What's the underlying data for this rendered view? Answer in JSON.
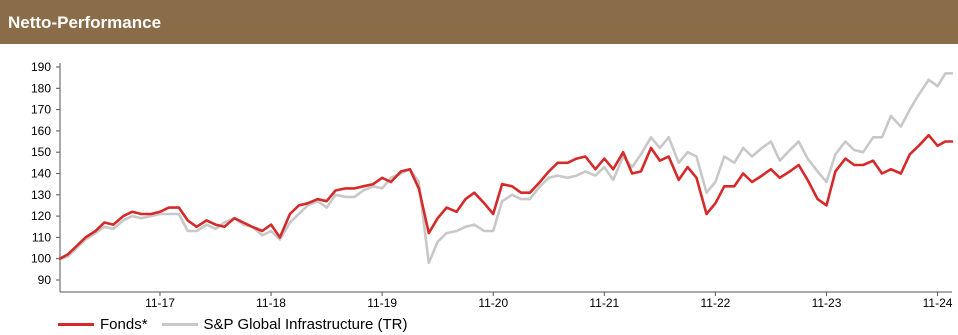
{
  "header": {
    "title": "Netto-Performance"
  },
  "colors": {
    "header_bg": "#8b6c49",
    "fonds": "#d42a2a",
    "benchmark": "#c8c8c8",
    "axis": "#555555"
  },
  "chart_data": {
    "type": "line",
    "title": "Netto-Performance",
    "xlabel": "",
    "ylabel": "",
    "ylim": [
      90,
      190
    ],
    "yticks": [
      90,
      100,
      110,
      120,
      130,
      140,
      150,
      160,
      170,
      180,
      190
    ],
    "xlim": [
      2016.1,
      2024.13
    ],
    "xticks": [
      {
        "x": 2017,
        "label": "11-17"
      },
      {
        "x": 2018,
        "label": "11-18"
      },
      {
        "x": 2019,
        "label": "11-19"
      },
      {
        "x": 2020,
        "label": "11-20"
      },
      {
        "x": 2021,
        "label": "11-21"
      },
      {
        "x": 2022,
        "label": "11-22"
      },
      {
        "x": 2023,
        "label": "11-23"
      },
      {
        "x": 2024,
        "label": "11-24"
      }
    ],
    "grid": false,
    "legend_position": "bottom-left",
    "x": [
      2016.1,
      2016.17,
      2016.25,
      2016.33,
      2016.42,
      2016.5,
      2016.58,
      2016.67,
      2016.75,
      2016.83,
      2016.92,
      2017.0,
      2017.08,
      2017.17,
      2017.25,
      2017.33,
      2017.42,
      2017.5,
      2017.58,
      2017.67,
      2017.75,
      2017.83,
      2017.92,
      2018.0,
      2018.08,
      2018.17,
      2018.25,
      2018.33,
      2018.42,
      2018.5,
      2018.58,
      2018.67,
      2018.75,
      2018.83,
      2018.92,
      2019.0,
      2019.08,
      2019.17,
      2019.25,
      2019.33,
      2019.42,
      2019.5,
      2019.58,
      2019.67,
      2019.75,
      2019.83,
      2019.92,
      2020.0,
      2020.08,
      2020.17,
      2020.25,
      2020.33,
      2020.42,
      2020.5,
      2020.58,
      2020.67,
      2020.75,
      2020.83,
      2020.92,
      2021.0,
      2021.08,
      2021.17,
      2021.25,
      2021.33,
      2021.42,
      2021.5,
      2021.58,
      2021.67,
      2021.75,
      2021.83,
      2021.92,
      2022.0,
      2022.08,
      2022.17,
      2022.25,
      2022.33,
      2022.42,
      2022.5,
      2022.58,
      2022.67,
      2022.75,
      2022.83,
      2022.92,
      2023.0,
      2023.08,
      2023.17,
      2023.25,
      2023.33,
      2023.42,
      2023.5,
      2023.58,
      2023.67,
      2023.75,
      2023.83,
      2023.92,
      2024.0,
      2024.07,
      2024.13
    ],
    "series": [
      {
        "name": "Fonds*",
        "color": "#d42a2a",
        "values": [
          100,
          102,
          106,
          110,
          113,
          117,
          116,
          120,
          122,
          121,
          121,
          122,
          124,
          124,
          118,
          115,
          118,
          116,
          115,
          119,
          117,
          115,
          113,
          116,
          110,
          121,
          125,
          126,
          128,
          127,
          132,
          133,
          133,
          134,
          135,
          138,
          136,
          141,
          142,
          133,
          112,
          119,
          124,
          122,
          128,
          131,
          126,
          121,
          135,
          134,
          131,
          131,
          136,
          141,
          145,
          145,
          147,
          148,
          142,
          147,
          142,
          150,
          140,
          141,
          152,
          146,
          148,
          137,
          143,
          138,
          121,
          126,
          134,
          134,
          140,
          136,
          139,
          142,
          138,
          141,
          144,
          137,
          128,
          125,
          141,
          147,
          144,
          144,
          146,
          140,
          142,
          140,
          149,
          153,
          158,
          153,
          155,
          155
        ]
      },
      {
        "name": "S&P Global Infrastructure (TR)",
        "color": "#c8c8c8",
        "values": [
          100,
          101,
          105,
          109,
          112,
          115,
          114,
          118,
          120,
          119,
          120,
          121,
          121,
          121,
          113,
          113,
          116,
          114,
          117,
          119,
          116,
          115,
          111,
          113,
          109,
          117,
          121,
          125,
          127,
          124,
          130,
          129,
          129,
          132,
          134,
          133,
          138,
          140,
          142,
          136,
          98,
          108,
          112,
          113,
          115,
          116,
          113,
          113,
          127,
          130,
          128,
          128,
          134,
          138,
          139,
          138,
          139,
          141,
          139,
          143,
          137,
          148,
          143,
          149,
          157,
          152,
          157,
          145,
          150,
          148,
          131,
          136,
          148,
          145,
          152,
          148,
          152,
          155,
          146,
          151,
          155,
          147,
          141,
          136,
          149,
          155,
          151,
          150,
          157,
          157,
          167,
          162,
          170,
          177,
          184,
          181,
          187,
          187
        ]
      }
    ]
  },
  "legend": {
    "items": [
      {
        "label": "Fonds*",
        "color": "#d42a2a"
      },
      {
        "label": "S&P Global Infrastructure (TR)",
        "color": "#c8c8c8"
      }
    ]
  }
}
